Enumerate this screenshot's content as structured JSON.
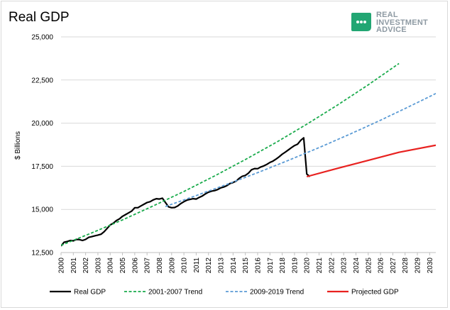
{
  "title": "Real GDP",
  "logo": {
    "line1": "REAL",
    "line2": "INVESTMENT",
    "line3": "ADVICE",
    "color": "#22a673"
  },
  "chart_data": {
    "type": "line",
    "title": "Real GDP",
    "xlabel": "",
    "ylabel": "$ Billions",
    "xlim": [
      2000,
      2030.5
    ],
    "ylim": [
      12500,
      25000
    ],
    "yticks": [
      12500,
      15000,
      17500,
      20000,
      22500,
      25000
    ],
    "ytick_labels": [
      "12,500",
      "15,000",
      "17,500",
      "20,000",
      "22,500",
      "25,000"
    ],
    "xticks": [
      "2000",
      "2001",
      "2002",
      "2003",
      "2004",
      "2005",
      "2006",
      "2007",
      "2008",
      "2009",
      "2010",
      "2011",
      "2012",
      "2013",
      "2014",
      "2015",
      "2016",
      "2017",
      "2018",
      "2019",
      "2020",
      "2021",
      "2022",
      "2023",
      "2024",
      "2025",
      "2026",
      "2027",
      "2028",
      "2029",
      "2030"
    ],
    "grid": true,
    "legend_position": "bottom",
    "series": [
      {
        "name": "Real GDP",
        "color": "#000000",
        "dash": "solid",
        "x": [
          2000.0,
          2000.25,
          2000.5,
          2000.75,
          2001.0,
          2001.25,
          2001.5,
          2001.75,
          2002.0,
          2002.25,
          2002.5,
          2002.75,
          2003.0,
          2003.25,
          2003.5,
          2003.75,
          2004.0,
          2004.25,
          2004.5,
          2004.75,
          2005.0,
          2005.25,
          2005.5,
          2005.75,
          2006.0,
          2006.25,
          2006.5,
          2006.75,
          2007.0,
          2007.25,
          2007.5,
          2007.75,
          2008.0,
          2008.25,
          2008.5,
          2008.75,
          2009.0,
          2009.25,
          2009.5,
          2009.75,
          2010.0,
          2010.25,
          2010.5,
          2010.75,
          2011.0,
          2011.25,
          2011.5,
          2011.75,
          2012.0,
          2012.25,
          2012.5,
          2012.75,
          2013.0,
          2013.25,
          2013.5,
          2013.75,
          2014.0,
          2014.25,
          2014.5,
          2014.75,
          2015.0,
          2015.25,
          2015.5,
          2015.75,
          2016.0,
          2016.25,
          2016.5,
          2016.75,
          2017.0,
          2017.25,
          2017.5,
          2017.75,
          2018.0,
          2018.25,
          2018.5,
          2018.75,
          2019.0,
          2019.25,
          2019.5,
          2019.75,
          2020.0,
          2020.25
        ],
        "y": [
          12880,
          13100,
          13140,
          13200,
          13180,
          13260,
          13250,
          13200,
          13260,
          13380,
          13420,
          13470,
          13510,
          13560,
          13700,
          13900,
          14100,
          14200,
          14350,
          14450,
          14600,
          14700,
          14800,
          14900,
          15100,
          15100,
          15200,
          15300,
          15400,
          15450,
          15550,
          15620,
          15600,
          15650,
          15400,
          15150,
          15100,
          15110,
          15200,
          15340,
          15450,
          15540,
          15580,
          15620,
          15600,
          15700,
          15780,
          15900,
          16000,
          16060,
          16090,
          16150,
          16250,
          16300,
          16380,
          16500,
          16560,
          16640,
          16800,
          16920,
          16970,
          17100,
          17300,
          17370,
          17360,
          17460,
          17520,
          17610,
          17720,
          17800,
          17920,
          18050,
          18200,
          18320,
          18450,
          18580,
          18700,
          18780,
          19000,
          19150,
          17050,
          16900
        ]
      },
      {
        "name": "2001-2007 Trend",
        "color": "#1aab4c",
        "dash": "dashed",
        "x": [
          2000,
          2002.5,
          2005,
          2007.5,
          2010,
          2012.5,
          2015,
          2017.5,
          2020,
          2022.5,
          2025,
          2027.5
        ],
        "y": [
          12920,
          13640,
          14390,
          15200,
          16040,
          16940,
          17890,
          18880,
          19940,
          21050,
          22220,
          23460
        ]
      },
      {
        "name": "2009-2019 Trend",
        "color": "#5b9bd5",
        "dash": "dashed",
        "x": [
          2008.5,
          2011,
          2013.5,
          2016,
          2018.5,
          2021,
          2023.5,
          2026,
          2028.5,
          2030.5
        ],
        "y": [
          15170,
          15800,
          16450,
          17130,
          17840,
          18580,
          19360,
          20170,
          21020,
          21720
        ]
      },
      {
        "name": "Projected GDP",
        "color": "#e8211f",
        "dash": "solid",
        "x": [
          2020.0,
          2022.5,
          2025,
          2027.5,
          2030.5
        ],
        "y": [
          16900,
          17380,
          17840,
          18310,
          18720
        ]
      }
    ]
  }
}
